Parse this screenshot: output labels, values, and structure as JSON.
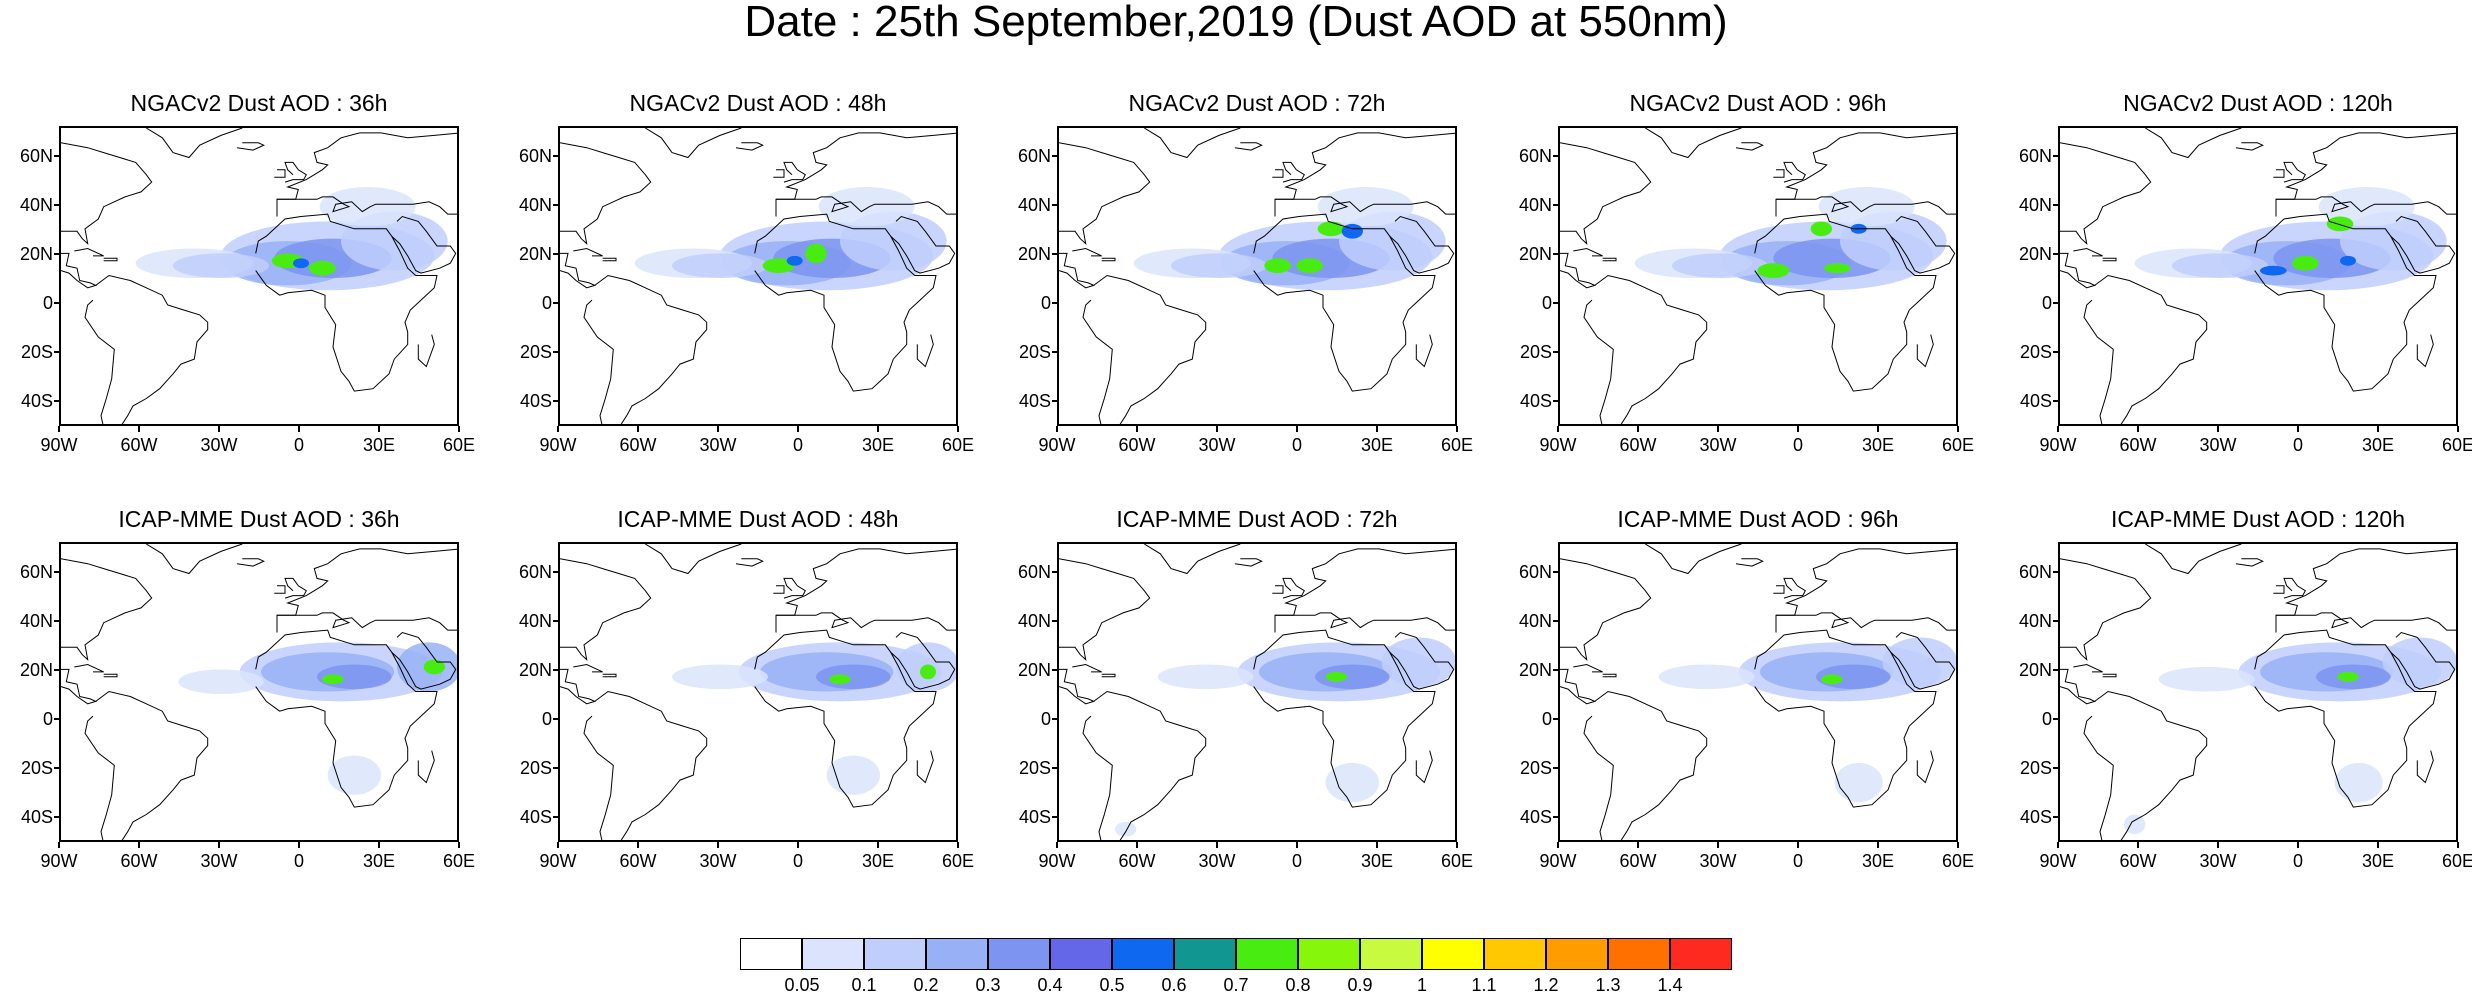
{
  "figure": {
    "title": "Date : 25th September,2019 (Dust AOD at 550nm)"
  },
  "panels": [
    {
      "title": "NGACv2 Dust AOD : 36h",
      "model": "NGACv2",
      "lead": "36h"
    },
    {
      "title": "NGACv2 Dust AOD : 48h",
      "model": "NGACv2",
      "lead": "48h"
    },
    {
      "title": "NGACv2 Dust AOD : 72h",
      "model": "NGACv2",
      "lead": "72h"
    },
    {
      "title": "NGACv2 Dust AOD : 96h",
      "model": "NGACv2",
      "lead": "96h"
    },
    {
      "title": "NGACv2 Dust AOD : 120h",
      "model": "NGACv2",
      "lead": "120h"
    },
    {
      "title": "ICAP-MME Dust AOD : 36h",
      "model": "ICAP-MME",
      "lead": "36h"
    },
    {
      "title": "ICAP-MME Dust AOD : 48h",
      "model": "ICAP-MME",
      "lead": "48h"
    },
    {
      "title": "ICAP-MME Dust AOD : 72h",
      "model": "ICAP-MME",
      "lead": "72h"
    },
    {
      "title": "ICAP-MME Dust AOD : 96h",
      "model": "ICAP-MME",
      "lead": "96h"
    },
    {
      "title": "ICAP-MME Dust AOD : 120h",
      "model": "ICAP-MME",
      "lead": "120h"
    }
  ],
  "axes": {
    "lat_labels": [
      "60N",
      "40N",
      "20N",
      "0",
      "20S",
      "40S"
    ],
    "lon_labels": [
      "90W",
      "60W",
      "30W",
      "0",
      "30E",
      "60E"
    ],
    "lon_range": [
      -90,
      60
    ],
    "lat_range": [
      -50,
      72
    ]
  },
  "colorbar": {
    "labels": [
      "0.05",
      "0.1",
      "0.2",
      "0.3",
      "0.4",
      "0.5",
      "0.6",
      "0.7",
      "0.8",
      "0.9",
      "1",
      "1.1",
      "1.2",
      "1.3",
      "1.4"
    ],
    "colors": [
      "#ffffff",
      "#dbe4fc",
      "#bfcefb",
      "#98b1f6",
      "#7d94f1",
      "#6468e8",
      "#0e68f0",
      "#11978f",
      "#49ec11",
      "#86f70a",
      "#c8fa3f",
      "#ffff00",
      "#ffc800",
      "#ff9d00",
      "#ff7000",
      "#ff2a1f"
    ]
  },
  "colors": {
    "background": "#ffffff",
    "coastline": "#000000"
  }
}
